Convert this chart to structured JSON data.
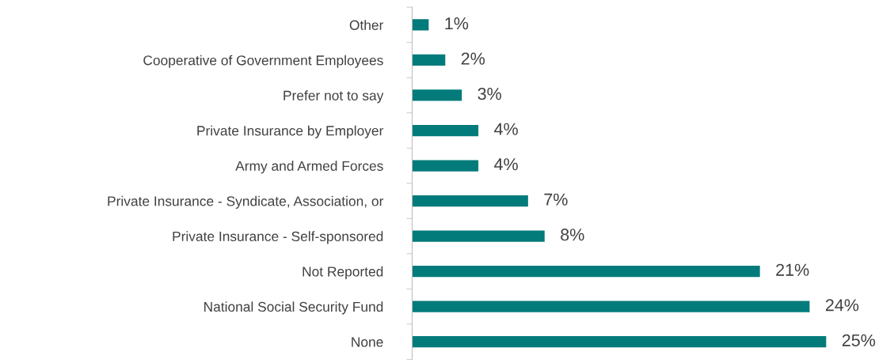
{
  "chart_data": {
    "type": "bar",
    "orientation": "horizontal",
    "categories": [
      "Other",
      "Cooperative of Government Employees",
      "Prefer not to say",
      "Private Insurance by Employer",
      "Army and Armed Forces",
      "Private Insurance - Syndicate, Association, or",
      "Private Insurance - Self-sponsored",
      "Not Reported",
      "National Social Security Fund",
      "None"
    ],
    "values": [
      1,
      2,
      3,
      4,
      4,
      7,
      8,
      21,
      24,
      25
    ],
    "value_labels": [
      "1%",
      "2%",
      "3%",
      "4%",
      "4%",
      "7%",
      "8%",
      "21%",
      "24%",
      "25%"
    ],
    "color": "#037b7a",
    "grid": false,
    "tick_labels": "y"
  }
}
